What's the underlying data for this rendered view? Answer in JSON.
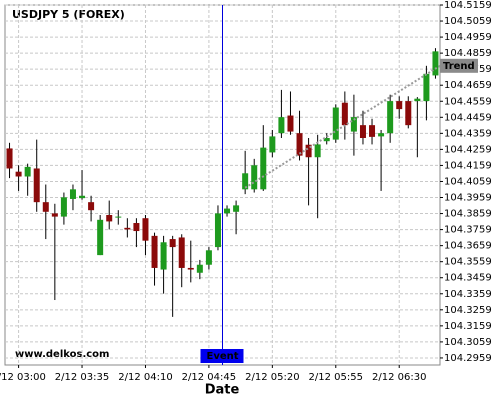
{
  "chart_data": {
    "type": "candlestick",
    "title": "USDJPY 5 (FOREX)",
    "watermark": "www.delkos.com",
    "x_label": "Date",
    "categories": [
      null,
      "2/12 03:00",
      null,
      null,
      null,
      null,
      null,
      null,
      "2/12 03:35",
      null,
      null,
      null,
      null,
      null,
      null,
      "2/12 04:10",
      null,
      null,
      null,
      null,
      null,
      null,
      "2/12 04:45",
      null,
      null,
      null,
      null,
      null,
      null,
      "2/12 05:20",
      null,
      null,
      null,
      null,
      null,
      null,
      "2/12 05:55",
      null,
      null,
      null,
      null,
      null,
      null,
      "2/12 06:30",
      null,
      null,
      null,
      null
    ],
    "open": [
      104.4265,
      104.412,
      104.409,
      104.414,
      104.393,
      104.386,
      104.384,
      104.395,
      104.3955,
      104.393,
      104.36,
      104.385,
      104.384,
      104.377,
      104.38,
      104.383,
      104.372,
      104.351,
      104.37,
      104.371,
      104.352,
      104.349,
      104.354,
      104.365,
      104.386,
      104.387,
      104.401,
      104.401,
      104.401,
      104.424,
      104.436,
      104.447,
      104.436,
      104.4288,
      104.421,
      104.431,
      104.432,
      104.455,
      104.437,
      104.441,
      104.441,
      104.434,
      104.436,
      104.456,
      104.456,
      104.456,
      104.456,
      104.472
    ],
    "high": [
      104.43,
      104.416,
      104.417,
      104.432,
      104.404,
      104.392,
      104.399,
      104.404,
      104.413,
      104.397,
      104.385,
      104.394,
      104.388,
      104.383,
      104.383,
      104.385,
      104.374,
      104.372,
      104.372,
      104.373,
      104.369,
      104.357,
      104.365,
      104.391,
      104.391,
      104.394,
      104.425,
      104.42,
      104.441,
      104.438,
      104.463,
      104.462,
      104.45,
      104.433,
      104.435,
      104.436,
      104.454,
      104.462,
      104.46,
      104.45,
      104.445,
      104.438,
      104.46,
      104.459,
      104.459,
      104.4585,
      104.478,
      104.489
    ],
    "low": [
      104.408,
      104.4,
      104.397,
      104.387,
      104.37,
      104.332,
      104.379,
      104.388,
      104.3945,
      104.381,
      104.36,
      104.376,
      104.379,
      104.371,
      104.365,
      104.36,
      104.341,
      104.336,
      104.3215,
      104.34,
      104.343,
      104.345,
      104.351,
      104.363,
      104.384,
      104.373,
      104.398,
      104.399,
      104.4,
      104.421,
      104.433,
      104.435,
      104.419,
      104.391,
      104.383,
      104.429,
      104.43,
      104.432,
      104.422,
      104.429,
      104.429,
      104.4,
      104.43,
      104.445,
      104.439,
      104.421,
      104.444,
      104.47
    ],
    "close": [
      104.414,
      104.409,
      104.415,
      104.393,
      104.387,
      104.384,
      104.396,
      104.401,
      104.397,
      104.388,
      104.382,
      104.381,
      104.384,
      104.376,
      104.375,
      104.369,
      104.352,
      104.368,
      104.365,
      104.352,
      104.351,
      104.354,
      104.363,
      104.386,
      104.389,
      104.391,
      104.411,
      104.416,
      104.427,
      104.434,
      104.446,
      104.437,
      104.422,
      104.421,
      104.429,
      104.433,
      104.452,
      104.441,
      104.446,
      104.433,
      104.4337,
      104.436,
      104.456,
      104.451,
      104.441,
      104.4575,
      104.473,
      104.487
    ],
    "up_color": "#1e9a1e",
    "down_color": "#8b0a0a",
    "ylim": [
      104.2915,
      104.5159
    ],
    "yticks": [
      104.2959,
      104.3059,
      104.3159,
      104.3259,
      104.3359,
      104.3459,
      104.3559,
      104.3659,
      104.3759,
      104.3859,
      104.3959,
      104.4059,
      104.4159,
      104.4259,
      104.4359,
      104.4459,
      104.4559,
      104.4659,
      104.4759,
      104.4859,
      104.4959,
      104.5059,
      104.5159
    ],
    "grid": true,
    "event": {
      "label": "Event"
    },
    "trend": {
      "label": "Trend",
      "values": [
        104.402,
        104.478
      ]
    }
  }
}
